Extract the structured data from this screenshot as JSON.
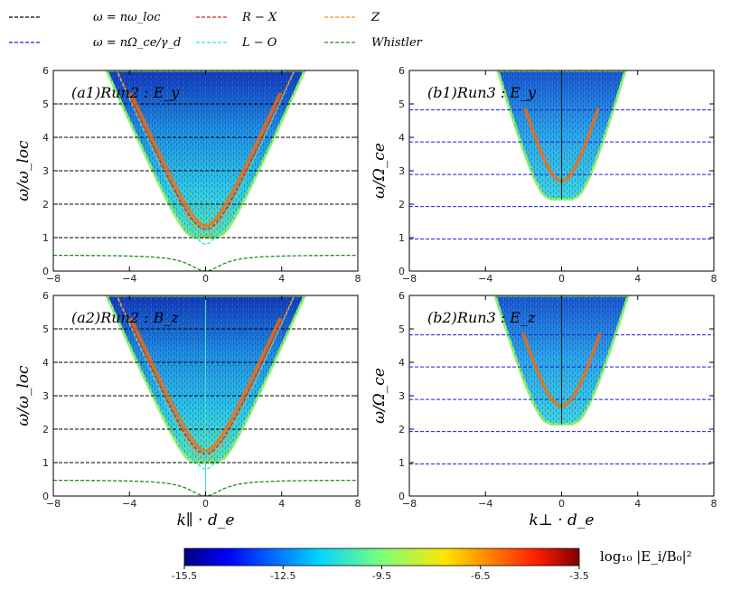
{
  "chart_data": {
    "type": "heatmap",
    "legend": {
      "placement": "top",
      "entries": [
        {
          "label": "ω = nω_loc",
          "color": "#000000"
        },
        {
          "label": "ω = nΩ_ce/γ_d",
          "color": "#1f1fd6"
        },
        {
          "label": "R − X",
          "color": "#d62020"
        },
        {
          "label": "L − O",
          "color": "#1ee3ee"
        },
        {
          "label": "Z",
          "color": "#ff8c1a"
        },
        {
          "label": "Whistler",
          "color": "#1e8c1e"
        }
      ]
    },
    "panels": [
      {
        "id": "a1",
        "title": "(a1)Run2 : E_y",
        "xlim": [
          -8,
          8
        ],
        "ylim": [
          0,
          6
        ],
        "xticks": [
          "−8",
          "−4",
          "0",
          "4",
          "8"
        ],
        "yticks": [
          "0",
          "1",
          "2",
          "3",
          "4",
          "5",
          "6"
        ],
        "ylabel": "ω/ω_loc",
        "xlabel": "",
        "harmonics": [
          1,
          2,
          3,
          4,
          5
        ],
        "harmonic_color": "#000000",
        "cone_slope": 1.27,
        "cone_base": 1.0,
        "curves": [
          "R-X",
          "L-O",
          "Z",
          "Whistler"
        ],
        "center_line": false
      },
      {
        "id": "b1",
        "title": "(b1)Run3 : E_y",
        "xlim": [
          -8,
          8
        ],
        "ylim": [
          0,
          6
        ],
        "xticks": [
          "−8",
          "−4",
          "0",
          "4",
          "8"
        ],
        "yticks": [
          "0",
          "1",
          "2",
          "3",
          "4",
          "5",
          "6"
        ],
        "ylabel": "ω/Ω_ce",
        "xlabel": "",
        "harmonics": [
          0.96,
          1.93,
          2.89,
          3.86,
          4.82
        ],
        "harmonic_color": "#1f1fd6",
        "cone_slope": 2.0,
        "cone_base": 2.15,
        "curves": [],
        "center_line": true
      },
      {
        "id": "a2",
        "title": "(a2)Run2 : B_z",
        "xlim": [
          -8,
          8
        ],
        "ylim": [
          0,
          6
        ],
        "xticks": [
          "−8",
          "−4",
          "0",
          "4",
          "8"
        ],
        "yticks": [
          "0",
          "1",
          "2",
          "3",
          "4",
          "5",
          "6"
        ],
        "ylabel": "ω/ω_loc",
        "xlabel": "k∥ · d_e",
        "harmonics": [
          1,
          2,
          3,
          4,
          5
        ],
        "harmonic_color": "#000000",
        "cone_slope": 1.27,
        "cone_base": 1.0,
        "curves": [
          "R-X",
          "L-O",
          "Z",
          "Whistler"
        ],
        "center_line": true
      },
      {
        "id": "b2",
        "title": "(b2)Run3 : E_z",
        "xlim": [
          -8,
          8
        ],
        "ylim": [
          0,
          6
        ],
        "xticks": [
          "−8",
          "−4",
          "0",
          "4",
          "8"
        ],
        "yticks": [
          "0",
          "1",
          "2",
          "3",
          "4",
          "5",
          "6"
        ],
        "ylabel": "ω/Ω_ce",
        "xlabel": "k⊥ · d_e",
        "harmonics": [
          0.96,
          1.93,
          2.89,
          3.86,
          4.82
        ],
        "harmonic_color": "#1f1fd6",
        "cone_slope": 1.9,
        "cone_base": 2.15,
        "curves": [],
        "center_line": true
      }
    ],
    "colorbar": {
      "label": "log₁₀ |E_i/B₀|²",
      "min": -15.5,
      "max": -3.5,
      "ticks": [
        "-15.5",
        "-12.5",
        "-9.5",
        "-6.5",
        "-3.5"
      ],
      "tick_values": [
        -15.5,
        -12.5,
        -9.5,
        -6.5,
        -3.5
      ]
    }
  }
}
